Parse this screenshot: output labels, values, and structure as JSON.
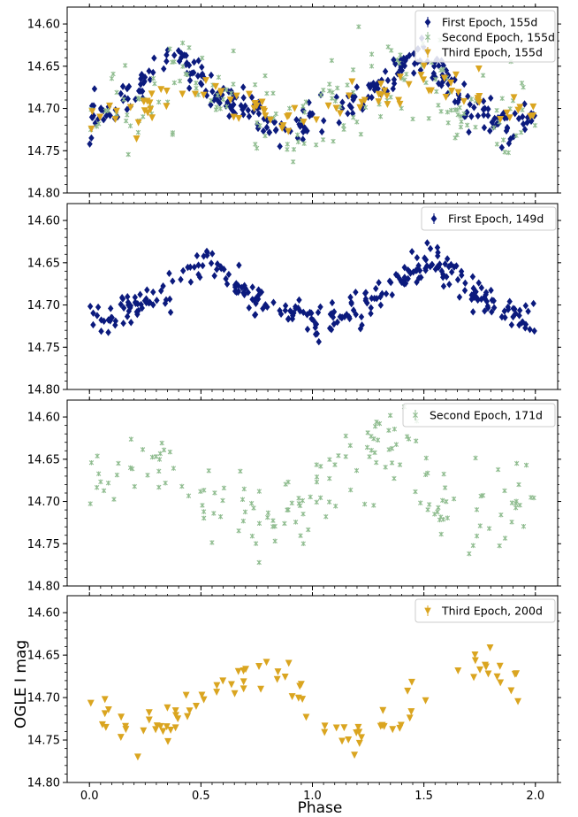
{
  "figure": {
    "xlabel": "Phase",
    "ylabel": "OGLE I mag"
  },
  "styles": {
    "first": {
      "color": "#0b1a7d",
      "marker": "diamond"
    },
    "second": {
      "color": "#8fbc8f",
      "marker": "x-star"
    },
    "third": {
      "color": "#daa520",
      "marker": "triangle-down"
    }
  },
  "chart_data": [
    {
      "type": "scatter",
      "panel": 1,
      "xlim": [
        -0.1,
        2.1
      ],
      "ylim": [
        14.8,
        14.58
      ],
      "xticks": [
        0.0,
        0.5,
        1.0,
        1.5,
        2.0
      ],
      "xtick_labels": [
        "0.0",
        "0.5",
        "1.0",
        "1.5",
        "2.0"
      ],
      "xtick_labels_shown": false,
      "yticks": [
        14.6,
        14.65,
        14.7,
        14.75,
        14.8
      ],
      "ytick_labels": [
        "14.60",
        "14.65",
        "14.70",
        "14.75",
        "14.80"
      ],
      "legend": "top-right",
      "series": [
        {
          "name": "First Epoch, 155d",
          "style": "first",
          "x": [
            0.0,
            0.1,
            0.2,
            0.3,
            0.4,
            0.5,
            0.6,
            0.7,
            0.8,
            0.9,
            1.0,
            1.1,
            1.2,
            1.3,
            1.4,
            1.5,
            1.6,
            1.7,
            1.8,
            1.9,
            2.0
          ],
          "y": [
            14.715,
            14.7,
            14.68,
            14.65,
            14.64,
            14.66,
            14.69,
            14.7,
            14.715,
            14.73,
            14.715,
            14.7,
            14.69,
            14.68,
            14.65,
            14.63,
            14.67,
            14.7,
            14.71,
            14.725,
            14.71
          ]
        },
        {
          "name": "Second Epoch, 155d",
          "style": "second",
          "x": [
            0.0,
            0.1,
            0.2,
            0.3,
            0.4,
            0.5,
            0.6,
            0.7,
            0.8,
            0.9,
            1.0,
            1.1,
            1.2,
            1.3,
            1.4,
            1.5,
            1.6,
            1.7,
            1.8,
            1.9,
            2.0
          ],
          "y": [
            14.7,
            14.69,
            14.7,
            14.69,
            14.66,
            14.65,
            14.69,
            14.7,
            14.71,
            14.72,
            14.7,
            14.69,
            14.68,
            14.66,
            14.65,
            14.66,
            14.69,
            14.71,
            14.72,
            14.71,
            14.705
          ]
        },
        {
          "name": "Third Epoch, 155d",
          "style": "third",
          "x": [
            0.0,
            0.1,
            0.2,
            0.3,
            0.4,
            0.5,
            0.6,
            0.7,
            0.8,
            0.9,
            1.0,
            1.1,
            1.2,
            1.3,
            1.4,
            1.5,
            1.6,
            1.7,
            1.8,
            1.9,
            2.0
          ],
          "y": [
            14.71,
            14.7,
            14.7,
            14.69,
            14.67,
            14.68,
            14.68,
            14.69,
            14.7,
            14.71,
            14.715,
            14.71,
            14.7,
            14.69,
            14.68,
            14.66,
            14.67,
            14.68,
            14.69,
            14.7,
            14.71
          ]
        }
      ]
    },
    {
      "type": "scatter",
      "panel": 2,
      "xlim": [
        -0.1,
        2.1
      ],
      "ylim": [
        14.8,
        14.58
      ],
      "xticks": [
        0.0,
        0.5,
        1.0,
        1.5,
        2.0
      ],
      "xtick_labels": [
        "0.0",
        "0.5",
        "1.0",
        "1.5",
        "2.0"
      ],
      "xtick_labels_shown": false,
      "yticks": [
        14.6,
        14.65,
        14.7,
        14.75,
        14.8
      ],
      "ytick_labels": [
        "14.60",
        "14.65",
        "14.70",
        "14.75",
        "14.80"
      ],
      "legend": "top-right",
      "series": [
        {
          "name": "First Epoch, 149d",
          "style": "first",
          "x": [
            0.0,
            0.1,
            0.2,
            0.3,
            0.4,
            0.5,
            0.6,
            0.7,
            0.8,
            0.9,
            1.0,
            1.1,
            1.2,
            1.3,
            1.4,
            1.5,
            1.6,
            1.7,
            1.8,
            1.9,
            2.0
          ],
          "y": [
            14.72,
            14.715,
            14.705,
            14.69,
            14.67,
            14.65,
            14.655,
            14.68,
            14.7,
            14.71,
            14.72,
            14.715,
            14.705,
            14.69,
            14.67,
            14.65,
            14.655,
            14.68,
            14.7,
            14.71,
            14.72
          ]
        }
      ]
    },
    {
      "type": "scatter",
      "panel": 3,
      "xlim": [
        -0.1,
        2.1
      ],
      "ylim": [
        14.8,
        14.58
      ],
      "xticks": [
        0.0,
        0.5,
        1.0,
        1.5,
        2.0
      ],
      "xtick_labels": [
        "0.0",
        "0.5",
        "1.0",
        "1.5",
        "2.0"
      ],
      "xtick_labels_shown": false,
      "yticks": [
        14.6,
        14.65,
        14.7,
        14.75,
        14.8
      ],
      "ytick_labels": [
        "14.60",
        "14.65",
        "14.70",
        "14.75",
        "14.80"
      ],
      "legend": "top-right",
      "series": [
        {
          "name": "Second Epoch, 171d",
          "style": "second",
          "x": [
            0.0,
            0.1,
            0.2,
            0.3,
            0.4,
            0.5,
            0.6,
            0.7,
            0.8,
            0.9,
            1.0,
            1.1,
            1.2,
            1.3,
            1.4,
            1.5,
            1.6,
            1.7,
            1.8,
            1.9,
            2.0
          ],
          "y": [
            14.68,
            14.66,
            14.65,
            14.64,
            14.66,
            14.69,
            14.71,
            14.715,
            14.72,
            14.72,
            14.69,
            14.665,
            14.65,
            14.64,
            14.65,
            14.67,
            14.7,
            14.715,
            14.72,
            14.71,
            14.69
          ]
        }
      ]
    },
    {
      "type": "scatter",
      "panel": 4,
      "xlim": [
        -0.1,
        2.1
      ],
      "ylim": [
        14.8,
        14.58
      ],
      "xticks": [
        0.0,
        0.5,
        1.0,
        1.5,
        2.0
      ],
      "xtick_labels": [
        "0.0",
        "0.5",
        "1.0",
        "1.5",
        "2.0"
      ],
      "xtick_labels_shown": true,
      "yticks": [
        14.6,
        14.65,
        14.7,
        14.75,
        14.8
      ],
      "ytick_labels": [
        "14.60",
        "14.65",
        "14.70",
        "14.75",
        "14.80"
      ],
      "legend": "top-right",
      "series": [
        {
          "name": "Third Epoch, 200d",
          "style": "third",
          "x": [
            0.0,
            0.1,
            0.2,
            0.3,
            0.4,
            0.5,
            0.6,
            0.7,
            0.8,
            0.9,
            1.0,
            1.1,
            1.2,
            1.3,
            1.4,
            1.5,
            1.6,
            1.7,
            1.8,
            1.9,
            2.0
          ],
          "y": [
            14.71,
            14.73,
            14.745,
            14.74,
            14.72,
            14.7,
            14.685,
            14.67,
            14.66,
            14.68,
            14.72,
            14.74,
            14.745,
            14.735,
            14.715,
            14.695,
            14.68,
            14.665,
            14.66,
            14.68,
            14.715
          ]
        }
      ]
    }
  ]
}
